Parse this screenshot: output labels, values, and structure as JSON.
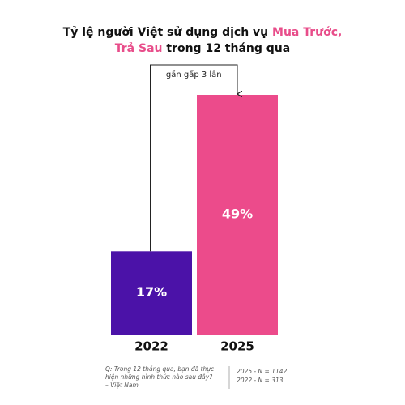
{
  "chart_data": {
    "type": "bar",
    "title": [
      [
        {
          "text": "Tỷ lệ người Việt sử dụng dịch vụ ",
          "color": "#111111"
        },
        {
          "text": "Mua Trước,",
          "color": "#e84d8a"
        }
      ],
      [
        {
          "text": "Trả Sau",
          "color": "#e84d8a"
        },
        {
          "text": " trong 12 tháng qua",
          "color": "#111111"
        }
      ]
    ],
    "categories": [
      "2022",
      "2025"
    ],
    "values": [
      17,
      49
    ],
    "value_labels": [
      "17%",
      "49%"
    ],
    "colors": [
      "#4b12a8",
      "#ec4b8b"
    ],
    "annotation": "gần gấp 3 lần",
    "footnote": [
      "Q: Trong 12 tháng qua, bạn đã thực",
      "hiện những hình thức nào sau đây?",
      "– Việt Nam"
    ],
    "samples": [
      "2025 - N = 1142",
      "2022 - N = 313"
    ]
  }
}
